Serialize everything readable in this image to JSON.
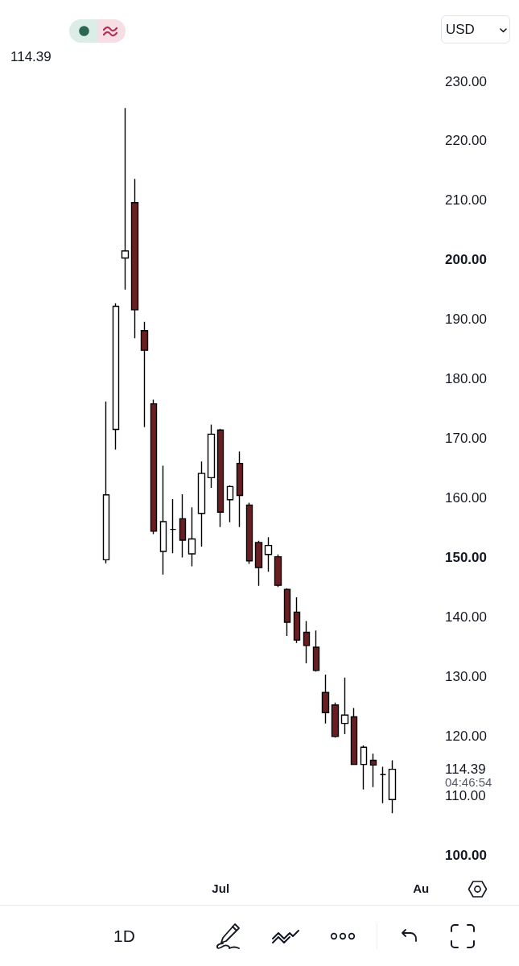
{
  "chart_data": {
    "type": "candlestick",
    "categories": [
      null,
      null,
      null,
      null,
      null,
      null,
      null,
      null,
      null,
      null,
      null,
      null,
      "Jul",
      null,
      null,
      null,
      null,
      null,
      null,
      null,
      null,
      null,
      null,
      null,
      null,
      null,
      null,
      null,
      null,
      null,
      null,
      null,
      null,
      "Au",
      null
    ],
    "ohlc": [
      [
        149.6,
        176.2,
        149.0,
        160.5
      ],
      [
        171.5,
        192.7,
        168.1,
        192.2
      ],
      [
        200.3,
        225.5,
        195.0,
        201.5
      ],
      [
        209.6,
        213.6,
        186.8,
        191.6
      ],
      [
        188.1,
        189.6,
        171.9,
        184.8
      ],
      [
        175.8,
        176.5,
        153.9,
        154.4
      ],
      [
        151.0,
        165.4,
        147.1,
        156.0
      ],
      [
        154.7,
        159.8,
        150.7,
        154.7
      ],
      [
        156.5,
        160.6,
        150.0,
        152.9
      ],
      [
        150.6,
        158.4,
        148.5,
        153.1
      ],
      [
        157.4,
        166.1,
        151.8,
        164.1
      ],
      [
        163.4,
        172.3,
        161.7,
        170.7
      ],
      [
        171.4,
        171.6,
        155.1,
        157.6
      ],
      [
        159.7,
        162.1,
        155.9,
        161.9
      ],
      [
        165.8,
        167.8,
        155.1,
        160.4
      ],
      [
        158.8,
        159.2,
        148.9,
        149.4
      ],
      [
        152.5,
        152.8,
        145.2,
        148.3
      ],
      [
        150.5,
        153.4,
        147.6,
        152.0
      ],
      [
        150.1,
        150.5,
        145.0,
        145.3
      ],
      [
        144.6,
        144.8,
        136.8,
        139.1
      ],
      [
        140.8,
        143.3,
        135.6,
        136.1
      ],
      [
        137.4,
        139.3,
        132.2,
        135.2
      ],
      [
        134.9,
        137.7,
        130.8,
        131.0
      ],
      [
        127.3,
        130.3,
        122.1,
        123.9
      ],
      [
        125.2,
        125.6,
        119.7,
        119.9
      ],
      [
        122.1,
        129.8,
        120.3,
        123.5
      ],
      [
        123.2,
        124.7,
        115.2,
        115.2
      ],
      [
        115.2,
        118.4,
        111.0,
        118.1
      ],
      [
        115.9,
        117.0,
        111.4,
        115.1
      ],
      [
        113.5,
        114.8,
        108.7,
        113.5
      ],
      [
        109.3,
        115.9,
        107.0,
        114.39
      ],
      null,
      null,
      null,
      null
    ],
    "colors": [
      "#ffffff",
      "#ffffff",
      "#ffffff",
      "#6b1e22",
      "#6b1e22",
      "#6b1e22",
      "#ffffff",
      "#000000",
      "#6b1e22",
      "#ffffff",
      "#ffffff",
      "#ffffff",
      "#6b1e22",
      "#ffffff",
      "#6b1e22",
      "#6b1e22",
      "#6b1e22",
      "#ffffff",
      "#6b1e22",
      "#6b1e22",
      "#6b1e22",
      "#6b1e22",
      "#6b1e22",
      "#6b1e22",
      "#6b1e22",
      "#ffffff",
      "#6b1e22",
      "#ffffff",
      "#6b1e22",
      "#000000",
      "#ffffff",
      null,
      null,
      null,
      null
    ],
    "ylim": [
      100,
      230
    ],
    "yticks": [
      {
        "value": 100,
        "label": "100.00"
      },
      {
        "value": 110,
        "label": "110.00"
      },
      {
        "value": 114.39,
        "label": "114.39"
      },
      {
        "value": 120,
        "label": "120.00"
      },
      {
        "value": 130,
        "label": "130.00"
      },
      {
        "value": 140,
        "label": "140.00"
      },
      {
        "value": 150,
        "label": "150.00"
      },
      {
        "value": 160,
        "label": "160.00"
      },
      {
        "value": 170,
        "label": "170.00"
      },
      {
        "value": 180,
        "label": "180.00"
      },
      {
        "value": 190,
        "label": "190.00"
      },
      {
        "value": 200,
        "label": "200.00"
      },
      {
        "value": 210,
        "label": "210.00"
      },
      {
        "value": 220,
        "label": "220.00"
      },
      {
        "value": 230,
        "label": "230.00"
      }
    ],
    "annotations": [
      "114.39",
      "04:46:54",
      "USD",
      "1D"
    ]
  }
}
